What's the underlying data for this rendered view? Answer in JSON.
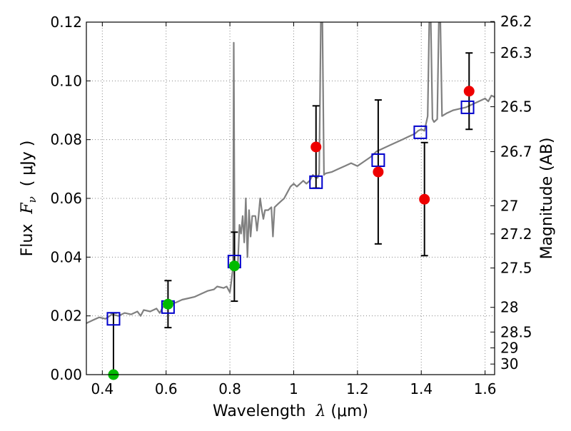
{
  "chart_data": {
    "type": "scatter",
    "title": "",
    "xlabel": {
      "prefix": "Wavelength  ",
      "symbol": "λ",
      "unit": " (μm)"
    },
    "ylabel": {
      "prefix": "Flux  ",
      "symbol": "F",
      "subscript": "ν",
      "unit": "  ( μJy )"
    },
    "y2label": "Magnitude (AB)",
    "xlim": [
      0.35,
      1.63
    ],
    "ylim": [
      0.0,
      0.12
    ],
    "grid": true,
    "x_ticks": [
      {
        "v": 0.4,
        "label": "0.4"
      },
      {
        "v": 0.6,
        "label": "0.6"
      },
      {
        "v": 0.8,
        "label": "0.8"
      },
      {
        "v": 1.0,
        "label": "1"
      },
      {
        "v": 1.2,
        "label": "1.2"
      },
      {
        "v": 1.4,
        "label": "1.4"
      },
      {
        "v": 1.6,
        "label": "1.6"
      }
    ],
    "y_ticks": [
      {
        "v": 0.0,
        "label": "0.00"
      },
      {
        "v": 0.02,
        "label": "0.02"
      },
      {
        "v": 0.04,
        "label": "0.04"
      },
      {
        "v": 0.06,
        "label": "0.06"
      },
      {
        "v": 0.08,
        "label": "0.08"
      },
      {
        "v": 0.1,
        "label": "0.10"
      },
      {
        "v": 0.12,
        "label": "0.12"
      }
    ],
    "mag_ticks": [
      {
        "label": "26.2",
        "flux": 0.1202
      },
      {
        "label": "26.3",
        "flux": 0.1096
      },
      {
        "label": "26.5",
        "flux": 0.0912
      },
      {
        "label": "26.7",
        "flux": 0.0759
      },
      {
        "label": "27",
        "flux": 0.0575
      },
      {
        "label": "27.2",
        "flux": 0.0479
      },
      {
        "label": "27.5",
        "flux": 0.0363
      },
      {
        "label": "28",
        "flux": 0.0229
      },
      {
        "label": "28.5",
        "flux": 0.0145
      },
      {
        "label": "29",
        "flux": 0.0091
      },
      {
        "label": "30",
        "flux": 0.0036
      }
    ],
    "colors": {
      "spectrum": "#808080",
      "model": "#0000cc",
      "green": "#00bb00",
      "red": "#ee0000",
      "errorbar": "#000000",
      "grid": "#888888"
    },
    "spectrum": [
      [
        0.35,
        0.0175
      ],
      [
        0.37,
        0.0185
      ],
      [
        0.39,
        0.0195
      ],
      [
        0.41,
        0.019
      ],
      [
        0.43,
        0.0205
      ],
      [
        0.45,
        0.02
      ],
      [
        0.47,
        0.021
      ],
      [
        0.49,
        0.0205
      ],
      [
        0.51,
        0.0215
      ],
      [
        0.52,
        0.02
      ],
      [
        0.53,
        0.022
      ],
      [
        0.55,
        0.0215
      ],
      [
        0.57,
        0.0225
      ],
      [
        0.58,
        0.021
      ],
      [
        0.59,
        0.023
      ],
      [
        0.61,
        0.024
      ],
      [
        0.63,
        0.0245
      ],
      [
        0.65,
        0.0255
      ],
      [
        0.67,
        0.026
      ],
      [
        0.69,
        0.0265
      ],
      [
        0.71,
        0.0275
      ],
      [
        0.73,
        0.0285
      ],
      [
        0.75,
        0.029
      ],
      [
        0.76,
        0.03
      ],
      [
        0.78,
        0.0295
      ],
      [
        0.79,
        0.03
      ],
      [
        0.8,
        0.028
      ],
      [
        0.805,
        0.032
      ],
      [
        0.81,
        0.037
      ],
      [
        0.812,
        0.113
      ],
      [
        0.815,
        0.038
      ],
      [
        0.82,
        0.036
      ],
      [
        0.825,
        0.038
      ],
      [
        0.83,
        0.051
      ],
      [
        0.835,
        0.048
      ],
      [
        0.84,
        0.054
      ],
      [
        0.845,
        0.045
      ],
      [
        0.85,
        0.06
      ],
      [
        0.855,
        0.04
      ],
      [
        0.86,
        0.056
      ],
      [
        0.865,
        0.047
      ],
      [
        0.87,
        0.054
      ],
      [
        0.88,
        0.054
      ],
      [
        0.885,
        0.049
      ],
      [
        0.89,
        0.054
      ],
      [
        0.895,
        0.06
      ],
      [
        0.9,
        0.056
      ],
      [
        0.905,
        0.053
      ],
      [
        0.91,
        0.056
      ],
      [
        0.92,
        0.056
      ],
      [
        0.93,
        0.057
      ],
      [
        0.935,
        0.047
      ],
      [
        0.94,
        0.057
      ],
      [
        0.95,
        0.058
      ],
      [
        0.96,
        0.059
      ],
      [
        0.97,
        0.06
      ],
      [
        0.98,
        0.062
      ],
      [
        0.99,
        0.064
      ],
      [
        1.0,
        0.065
      ],
      [
        1.01,
        0.064
      ],
      [
        1.02,
        0.065
      ],
      [
        1.03,
        0.066
      ],
      [
        1.04,
        0.065
      ],
      [
        1.05,
        0.066
      ],
      [
        1.06,
        0.068
      ],
      [
        1.07,
        0.067
      ],
      [
        1.075,
        0.067
      ],
      [
        1.08,
        0.0685
      ],
      [
        1.085,
        0.12
      ],
      [
        1.09,
        0.12
      ],
      [
        1.095,
        0.068
      ],
      [
        1.1,
        0.0685
      ],
      [
        1.12,
        0.069
      ],
      [
        1.14,
        0.07
      ],
      [
        1.16,
        0.071
      ],
      [
        1.18,
        0.072
      ],
      [
        1.2,
        0.071
      ],
      [
        1.22,
        0.0725
      ],
      [
        1.24,
        0.074
      ],
      [
        1.26,
        0.076
      ],
      [
        1.28,
        0.077
      ],
      [
        1.3,
        0.078
      ],
      [
        1.32,
        0.079
      ],
      [
        1.34,
        0.08
      ],
      [
        1.36,
        0.081
      ],
      [
        1.38,
        0.082
      ],
      [
        1.39,
        0.083
      ],
      [
        1.4,
        0.0835
      ],
      [
        1.41,
        0.083
      ],
      [
        1.42,
        0.088
      ],
      [
        1.425,
        0.12
      ],
      [
        1.43,
        0.12
      ],
      [
        1.435,
        0.087
      ],
      [
        1.44,
        0.086
      ],
      [
        1.45,
        0.087
      ],
      [
        1.455,
        0.12
      ],
      [
        1.46,
        0.12
      ],
      [
        1.465,
        0.088
      ],
      [
        1.48,
        0.089
      ],
      [
        1.5,
        0.09
      ],
      [
        1.52,
        0.0905
      ],
      [
        1.54,
        0.091
      ],
      [
        1.56,
        0.092
      ],
      [
        1.58,
        0.093
      ],
      [
        1.6,
        0.094
      ],
      [
        1.61,
        0.093
      ],
      [
        1.62,
        0.095
      ],
      [
        1.63,
        0.0945
      ]
    ],
    "model_points": [
      {
        "x": 0.435,
        "y": 0.019
      },
      {
        "x": 0.606,
        "y": 0.023
      },
      {
        "x": 0.814,
        "y": 0.0385
      },
      {
        "x": 1.07,
        "y": 0.0655
      },
      {
        "x": 1.265,
        "y": 0.073
      },
      {
        "x": 1.397,
        "y": 0.0825
      },
      {
        "x": 1.545,
        "y": 0.091
      }
    ],
    "observed_points": [
      {
        "x": 0.435,
        "y": 0.0,
        "err_lo": 0.0,
        "err_hi": 0.021,
        "color": "green"
      },
      {
        "x": 0.606,
        "y": 0.024,
        "err_lo": 0.016,
        "err_hi": 0.032,
        "color": "green"
      },
      {
        "x": 0.814,
        "y": 0.037,
        "err_lo": 0.025,
        "err_hi": 0.0485,
        "color": "green"
      },
      {
        "x": 1.07,
        "y": 0.0775,
        "err_lo": 0.0635,
        "err_hi": 0.0915,
        "color": "red"
      },
      {
        "x": 1.265,
        "y": 0.069,
        "err_lo": 0.0445,
        "err_hi": 0.0935,
        "color": "red"
      },
      {
        "x": 1.41,
        "y": 0.0597,
        "err_lo": 0.0405,
        "err_hi": 0.079,
        "color": "red"
      },
      {
        "x": 1.55,
        "y": 0.0965,
        "err_lo": 0.0835,
        "err_hi": 0.1095,
        "color": "red"
      }
    ]
  }
}
